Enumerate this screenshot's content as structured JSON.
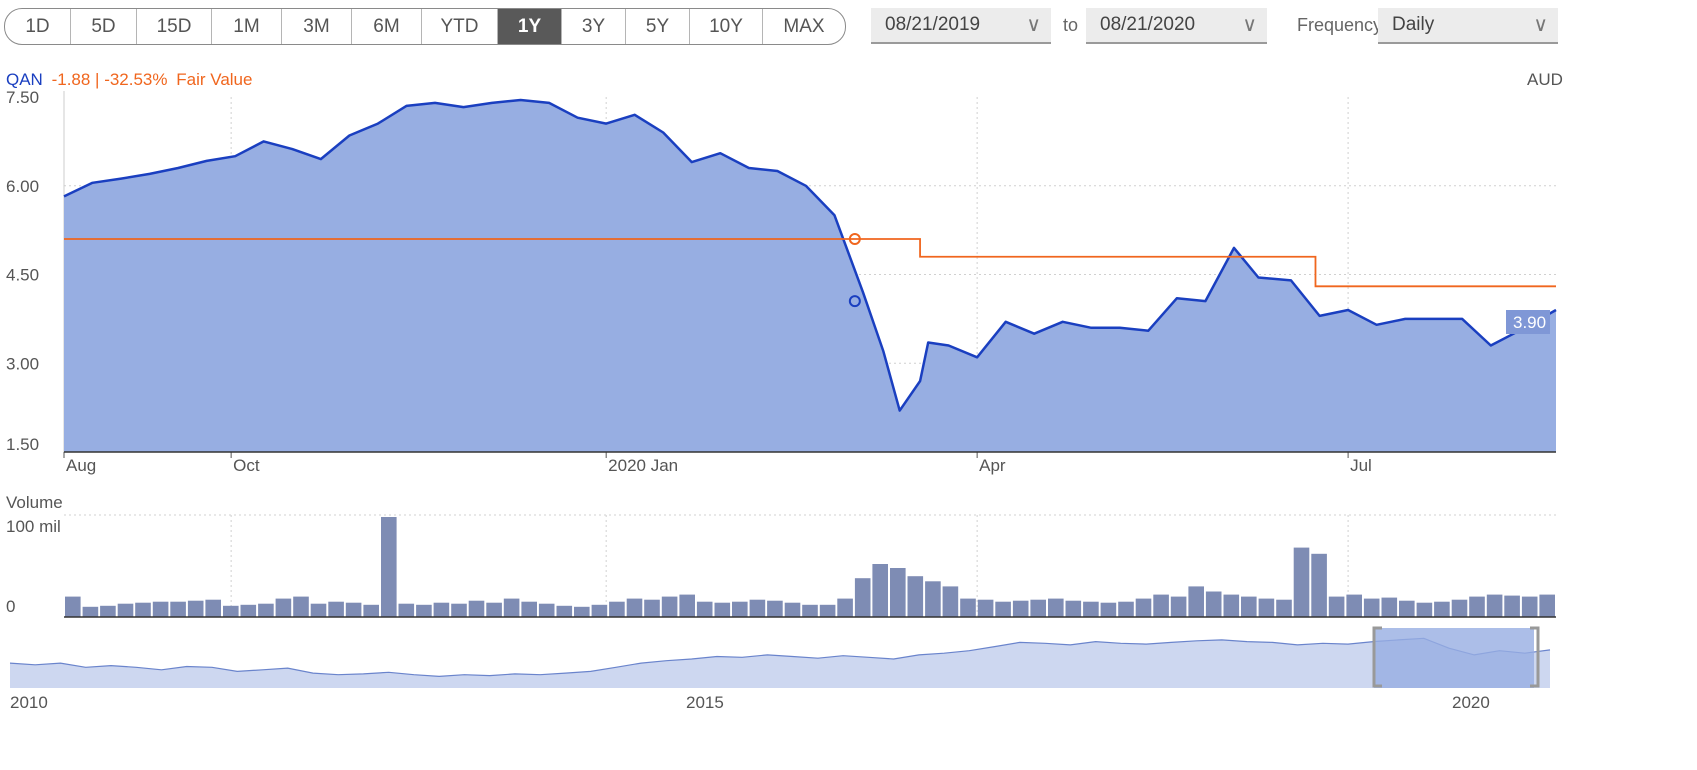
{
  "toolbar": {
    "ranges": [
      "1D",
      "5D",
      "15D",
      "1M",
      "3M",
      "6M",
      "YTD",
      "1Y",
      "3Y",
      "5Y",
      "10Y",
      "MAX"
    ],
    "active_range": "1Y",
    "date_from": "08/21/2019",
    "to_label": "to",
    "date_to": "08/21/2020",
    "frequency_label": "Frequency",
    "frequency_value": "Daily"
  },
  "legend": {
    "ticker": "QAN",
    "change": "-1.88 | -32.53%",
    "fair_value_label": "Fair Value",
    "currency": "AUD"
  },
  "colors": {
    "price": "#1a3fc0",
    "fill": "#97aee2",
    "fair_value": "#f0661e",
    "volume": "#7e8cb4"
  },
  "chart_data": {
    "type": "line",
    "ylim": [
      1.5,
      7.5
    ],
    "yticks": [
      "7.50",
      "6.00",
      "4.50",
      "3.00",
      "1.50"
    ],
    "xtick_labels": [
      "Aug",
      "Oct",
      "2020 Jan",
      "Apr",
      "Jul"
    ],
    "last_price_label": "3.90",
    "series": [
      {
        "name": "QAN",
        "x": [
          "2019-08-21",
          "2019-08-28",
          "2019-09-04",
          "2019-09-11",
          "2019-09-18",
          "2019-09-25",
          "2019-10-02",
          "2019-10-09",
          "2019-10-16",
          "2019-10-23",
          "2019-10-30",
          "2019-11-06",
          "2019-11-13",
          "2019-11-20",
          "2019-11-27",
          "2019-12-04",
          "2019-12-11",
          "2019-12-18",
          "2019-12-25",
          "2020-01-01",
          "2020-01-08",
          "2020-01-15",
          "2020-01-22",
          "2020-01-29",
          "2020-02-05",
          "2020-02-12",
          "2020-02-19",
          "2020-02-26",
          "2020-03-04",
          "2020-03-09",
          "2020-03-13",
          "2020-03-18",
          "2020-03-20",
          "2020-03-25",
          "2020-04-01",
          "2020-04-08",
          "2020-04-15",
          "2020-04-22",
          "2020-04-29",
          "2020-05-06",
          "2020-05-13",
          "2020-05-20",
          "2020-05-27",
          "2020-06-03",
          "2020-06-09",
          "2020-06-17",
          "2020-06-24",
          "2020-07-01",
          "2020-07-08",
          "2020-07-15",
          "2020-07-22",
          "2020-07-29",
          "2020-08-05",
          "2020-08-12",
          "2020-08-21"
        ],
        "values": [
          5.82,
          6.05,
          6.12,
          6.2,
          6.3,
          6.42,
          6.5,
          6.75,
          6.62,
          6.45,
          6.85,
          7.05,
          7.35,
          7.4,
          7.33,
          7.4,
          7.45,
          7.4,
          7.15,
          7.05,
          7.2,
          6.9,
          6.4,
          6.55,
          6.3,
          6.25,
          6.0,
          5.5,
          4.2,
          3.2,
          2.2,
          2.7,
          3.35,
          3.3,
          3.1,
          3.7,
          3.5,
          3.7,
          3.6,
          3.6,
          3.55,
          4.1,
          4.05,
          4.95,
          4.45,
          4.4,
          3.8,
          3.9,
          3.65,
          3.75,
          3.75,
          3.75,
          3.3,
          3.55,
          3.9
        ]
      },
      {
        "name": "Fair Value",
        "x": [
          "2019-08-21",
          "2020-03-04",
          "2020-03-18",
          "2020-06-23",
          "2020-08-21"
        ],
        "values": [
          5.1,
          5.1,
          4.8,
          4.3,
          4.3
        ]
      }
    ],
    "volume": {
      "ylabel": "Volume",
      "yticks": [
        "100 mil",
        "0"
      ],
      "ylim": [
        0,
        100
      ],
      "values": [
        20,
        10,
        11,
        13,
        14,
        15,
        15,
        16,
        17,
        11,
        12,
        13,
        18,
        20,
        13,
        15,
        14,
        12,
        98,
        13,
        12,
        14,
        13,
        16,
        14,
        18,
        15,
        13,
        11,
        10,
        12,
        15,
        18,
        17,
        20,
        22,
        15,
        14,
        15,
        17,
        16,
        14,
        12,
        12,
        18,
        38,
        52,
        48,
        40,
        35,
        30,
        18,
        17,
        15,
        16,
        17,
        18,
        16,
        15,
        14,
        15,
        18,
        22,
        20,
        30,
        25,
        22,
        20,
        18,
        17,
        68,
        62,
        20,
        22,
        18,
        19,
        16,
        14,
        15,
        17,
        20,
        22,
        21,
        20,
        22
      ]
    },
    "navigator": {
      "xtick_labels": [
        "2010",
        "2015",
        "2020"
      ]
    }
  }
}
